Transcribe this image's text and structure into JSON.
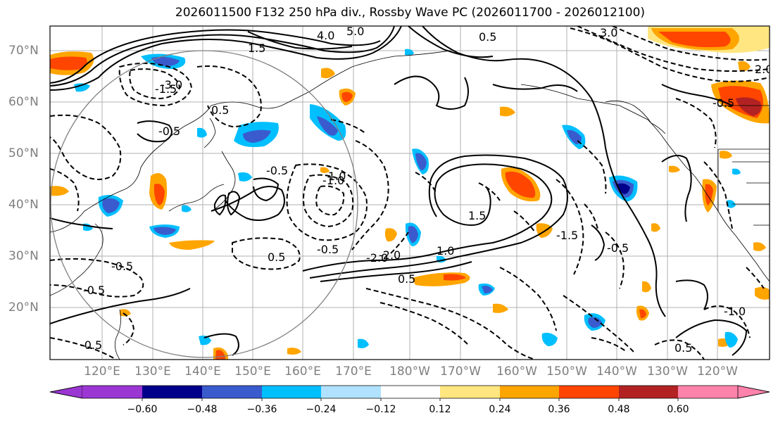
{
  "title": "2026011500 F132 250 hPa div., Rossby Wave PC (2026011700 - 2026012100)",
  "latitude_labels": [
    "70°N",
    "60°N",
    "50°N",
    "40°N",
    "30°N",
    "20°N"
  ],
  "longitude_labels": [
    "120°E",
    "130°E",
    "140°E",
    "150°E",
    "160°E",
    "170°E",
    "180°W",
    "170°W",
    "160°W",
    "150°W",
    "140°W",
    "130°W",
    "120°W"
  ],
  "colorbar": {
    "ticks": [
      "−0.60",
      "−0.48",
      "−0.36",
      "−0.24",
      "−0.12",
      "0.12",
      "0.24",
      "0.36",
      "0.48",
      "0.60"
    ],
    "colors": [
      "#9b36d3",
      "#00008b",
      "#3a5bcd",
      "#00bfff",
      "#b0e2ff",
      "#ffffff",
      "#ffe680",
      "#ffa500",
      "#ff4500",
      "#b22222",
      "#ff82ab"
    ]
  },
  "contour_labels": [
    "4.0",
    "5.0",
    "0.5",
    "1.5",
    "3.0",
    "2.0",
    "1.0",
    "-0.5",
    "-1.0",
    "-1.5",
    "-2.0",
    "-3.0",
    "-0.5",
    "0.5",
    "-0.5",
    "1.0",
    "-0.5",
    "0.5",
    "-0.5",
    "-2.0",
    "1.5",
    "-1.0",
    "-0.5",
    "0.5",
    "-0.5",
    "-1.5",
    "-0.5",
    "0.5"
  ]
}
